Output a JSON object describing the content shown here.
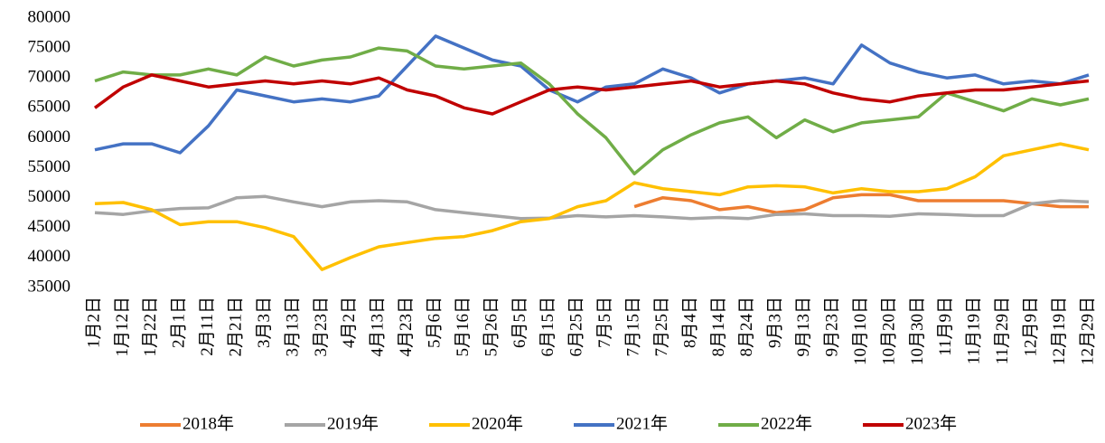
{
  "chart_data": {
    "type": "line",
    "categories": [
      "1月2日",
      "1月12日",
      "1月22日",
      "2月1日",
      "2月11日",
      "2月21日",
      "3月3日",
      "3月13日",
      "3月23日",
      "4月2日",
      "4月13日",
      "4月23日",
      "5月6日",
      "5月16日",
      "5月26日",
      "6月5日",
      "6月15日",
      "6月25日",
      "7月5日",
      "7月15日",
      "7月25日",
      "8月4日",
      "8月14日",
      "8月24日",
      "9月3日",
      "9月13日",
      "9月23日",
      "10月10日",
      "10月20日",
      "10月30日",
      "11月9日",
      "11月19日",
      "11月29日",
      "12月9日",
      "12月19日",
      "12月29日"
    ],
    "series": [
      {
        "name": "2018年",
        "color": "#ed7d31",
        "values": [
          null,
          null,
          null,
          null,
          null,
          null,
          null,
          null,
          null,
          null,
          null,
          null,
          null,
          null,
          null,
          null,
          null,
          null,
          null,
          48500,
          50000,
          49500,
          48000,
          48500,
          47500,
          48000,
          50000,
          50500,
          50500,
          49500,
          49500,
          49500,
          49500,
          49000,
          48500,
          48500
        ]
      },
      {
        "name": "2019年",
        "color": "#a5a5a5",
        "values": [
          47500,
          47200,
          47800,
          48200,
          48300,
          50000,
          50200,
          49300,
          48500,
          49300,
          49500,
          49300,
          48000,
          47500,
          47000,
          46500,
          46600,
          47000,
          46800,
          47000,
          46800,
          46500,
          46700,
          46500,
          47200,
          47300,
          47000,
          47000,
          46900,
          47300,
          47200,
          47000,
          47000,
          49000,
          49500,
          49300
        ]
      },
      {
        "name": "2020年",
        "color": "#ffc000",
        "values": [
          49000,
          49200,
          48000,
          45500,
          46000,
          46000,
          45000,
          43500,
          38000,
          40000,
          41800,
          42500,
          43200,
          43500,
          44500,
          46000,
          46500,
          48500,
          49500,
          52500,
          51500,
          51000,
          50500,
          51800,
          52000,
          51800,
          50800,
          51500,
          51000,
          51000,
          51500,
          53500,
          57000,
          58000,
          59000,
          58000
        ]
      },
      {
        "name": "2021年",
        "color": "#4472c4",
        "values": [
          58000,
          59000,
          59000,
          57500,
          62000,
          68000,
          67000,
          66000,
          66500,
          66000,
          67000,
          72000,
          77000,
          75000,
          73000,
          72000,
          68000,
          66000,
          68500,
          69000,
          71500,
          70000,
          67500,
          69000,
          69500,
          70000,
          69000,
          75500,
          72500,
          71000,
          70000,
          70500,
          69000,
          69500,
          69000,
          70500
        ]
      },
      {
        "name": "2022年",
        "color": "#70ad47",
        "values": [
          69500,
          71000,
          70500,
          70500,
          71500,
          70500,
          73500,
          72000,
          73000,
          73500,
          75000,
          74500,
          72000,
          71500,
          72000,
          72500,
          69000,
          64000,
          60000,
          54000,
          58000,
          60500,
          62500,
          63500,
          60000,
          63000,
          61000,
          62500,
          63000,
          63500,
          67500,
          66000,
          64500,
          66500,
          65500,
          66500
        ]
      },
      {
        "name": "2023年",
        "color": "#c00000",
        "values": [
          65000,
          68500,
          70500,
          69500,
          68500,
          69000,
          69500,
          69000,
          69500,
          69000,
          70000,
          68000,
          67000,
          65000,
          64000,
          66000,
          68000,
          68500,
          68000,
          68500,
          69000,
          69500,
          68500,
          69000,
          69500,
          69000,
          67500,
          66500,
          66000,
          67000,
          67500,
          68000,
          68000,
          68500,
          69000,
          69500
        ]
      }
    ],
    "ylim": [
      35000,
      80000
    ],
    "yticks": [
      35000,
      40000,
      45000,
      50000,
      55000,
      60000,
      65000,
      70000,
      75000,
      80000
    ],
    "grid": false,
    "legend": "bottom"
  }
}
